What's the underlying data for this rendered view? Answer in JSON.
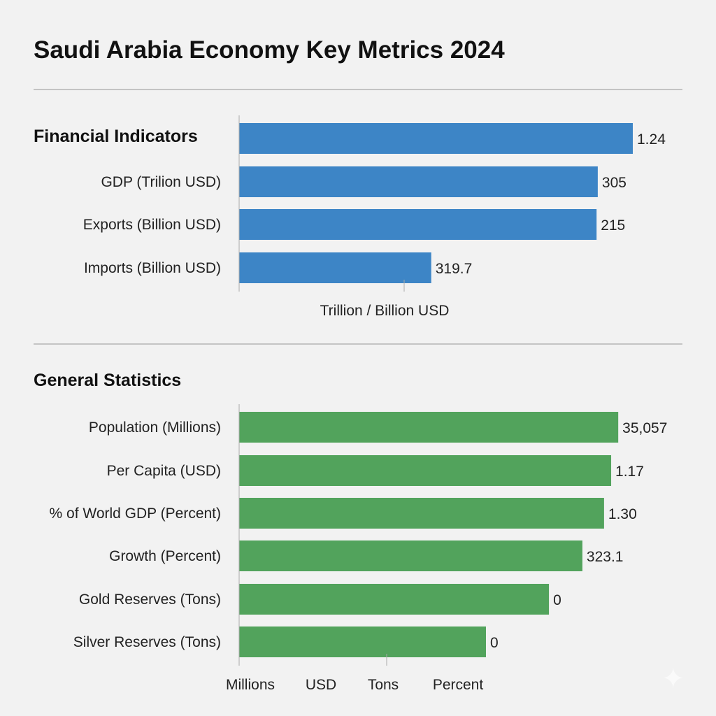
{
  "title": "Saudi Arabia Economy Key Metrics 2024",
  "chart_data": [
    {
      "type": "bar",
      "orientation": "horizontal",
      "section_title": "Financial Indicators",
      "color": "#3d85c6",
      "categories": [
        "",
        "GDP (Trilion USD)",
        "Exports (Billion USD)",
        "Imports (Billion USD)"
      ],
      "value_labels": [
        "1.24",
        "305",
        "215",
        "319.7"
      ],
      "bar_extent_fraction": [
        1.0,
        0.911,
        0.908,
        0.488
      ],
      "xlabel": "Trillion / Billion USD",
      "xtick_labels": [],
      "grid": false
    },
    {
      "type": "bar",
      "orientation": "horizontal",
      "section_title": "General Statistics",
      "color": "#52a35c",
      "categories": [
        "Population (Millions)",
        "Per Capita (USD)",
        "% of World GDP (Percent)",
        "Growth (Percent)",
        "Gold Reserves (Tons)",
        "Silver Reserves (Tons)"
      ],
      "value_labels": [
        "35,057",
        "1.17",
        "1.30",
        "323.1",
        "0",
        "0"
      ],
      "bar_extent_fraction": [
        0.963,
        0.945,
        0.927,
        0.872,
        0.787,
        0.627
      ],
      "xlabel": "",
      "xtick_labels": [
        "Millions",
        "USD",
        "Tons",
        "Percent"
      ],
      "grid": false
    }
  ]
}
